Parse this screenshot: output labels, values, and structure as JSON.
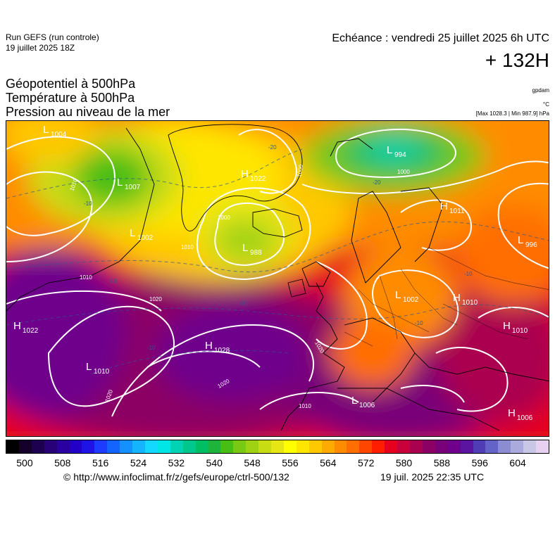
{
  "header": {
    "run_model": "Run GEFS (run controle)",
    "run_date": "19 juillet 2025 18Z",
    "valid_time": "Echéance : vendredi 25 juillet 2025 6h UTC",
    "lead_time": "+ 132H",
    "params": [
      "Géopotentiel à 500hPa",
      "Température à 500hPa",
      "Pression au niveau de la mer"
    ],
    "unit_geopotential": "gpdam",
    "unit_temperature": "°C",
    "minmax": "[Max 1028.3 | Min 987.9] hPa"
  },
  "pressure_centers": [
    {
      "type": "L",
      "value": "1004"
    },
    {
      "type": "L",
      "value": "994"
    },
    {
      "type": "H",
      "value": "1022"
    },
    {
      "type": "L",
      "value": "1007"
    },
    {
      "type": "H",
      "value": "1011"
    },
    {
      "type": "L",
      "value": "1002"
    },
    {
      "type": "L",
      "value": "988"
    },
    {
      "type": "L",
      "value": "996"
    },
    {
      "type": "L",
      "value": "1002"
    },
    {
      "type": "H",
      "value": "1010"
    },
    {
      "type": "H",
      "value": "1022"
    },
    {
      "type": "H",
      "value": "1028"
    },
    {
      "type": "H",
      "value": "1010"
    },
    {
      "type": "L",
      "value": "1010"
    },
    {
      "type": "L",
      "value": "1006"
    },
    {
      "type": "H",
      "value": "1006"
    }
  ],
  "isobar_labels": [
    "1010",
    "1000",
    "1000",
    "1010",
    "1010",
    "1020",
    "1020",
    "1020",
    "1020",
    "1010",
    "1000"
  ],
  "temperature_labels": [
    "-20",
    "-20",
    "-10",
    "-10",
    "-10",
    "-10",
    "-10",
    "-10"
  ],
  "colorbar": {
    "colors": [
      "#000000",
      "#14002a",
      "#1e0050",
      "#280078",
      "#2a00a0",
      "#2200c8",
      "#1e14e6",
      "#1e3cff",
      "#1464ff",
      "#1490ff",
      "#14b4ff",
      "#14d8ff",
      "#00e6e6",
      "#00d2b4",
      "#00c88c",
      "#00be64",
      "#1eb43c",
      "#46be14",
      "#78c814",
      "#a0d214",
      "#c8dc14",
      "#e6e614",
      "#ffff00",
      "#ffe600",
      "#ffc800",
      "#ffaa00",
      "#ff8c00",
      "#ff6e00",
      "#ff4600",
      "#ff1e00",
      "#e6001e",
      "#c8003c",
      "#aa0050",
      "#8c0064",
      "#780078",
      "#6e008c",
      "#5a14a0",
      "#503cb4",
      "#6464c8",
      "#8c8cd2",
      "#aaaadc",
      "#c8c8e6",
      "#e6d2f0"
    ],
    "ticks": [
      "500",
      "508",
      "516",
      "524",
      "532",
      "540",
      "548",
      "556",
      "564",
      "572",
      "580",
      "588",
      "596",
      "604"
    ]
  },
  "footer": {
    "credit": "© http://www.infoclimat.fr/z/gefs/europe/ctrl-500/132",
    "timestamp": "19 juil. 2025 22:35 UTC"
  }
}
